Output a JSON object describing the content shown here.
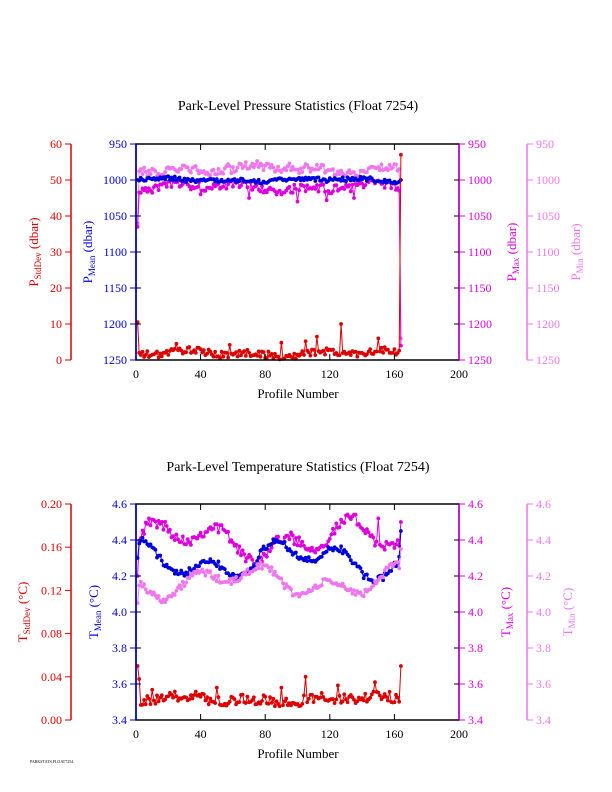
{
  "colors": {
    "stddev": "#dd0000",
    "mean": "#0000dd",
    "max": "#dd00dd",
    "min": "#ee77ee",
    "axis": "#000000"
  },
  "footer_text": "PARKSTATS.FLOAT7254",
  "chart_data": [
    {
      "type": "line",
      "title": "Park-Level Pressure Statistics (Float 7254)",
      "xlabel": "Profile Number",
      "xlim": [
        0,
        200
      ],
      "xticks": [
        "0",
        "40",
        "80",
        "120",
        "160",
        "200"
      ],
      "axes": {
        "stddev": {
          "label_main": "P",
          "label_sub": "StdDev",
          "label_unit": " (dbar)",
          "range": [
            0,
            60
          ],
          "ticks": [
            "0",
            "10",
            "20",
            "30",
            "40",
            "50",
            "60"
          ]
        },
        "mean": {
          "label_main": "P",
          "label_sub": "Mean",
          "label_unit": " (dbar)",
          "range": [
            1250,
            950
          ],
          "ticks": [
            "950",
            "1000",
            "1050",
            "1100",
            "1150",
            "1200",
            "1250"
          ]
        },
        "max": {
          "label_main": "P",
          "label_sub": "Max",
          "label_unit": " (dbar)",
          "range": [
            1250,
            950
          ],
          "ticks": [
            "950",
            "1000",
            "1050",
            "1100",
            "1150",
            "1200",
            "1250"
          ]
        },
        "min": {
          "label_main": "P",
          "label_sub": "Min",
          "label_unit": " (dbar)",
          "range": [
            1250,
            950
          ],
          "ticks": [
            "950",
            "1000",
            "1050",
            "1100",
            "1150",
            "1200",
            "1250"
          ]
        }
      },
      "profile_count": 164,
      "series": [
        {
          "key": "min",
          "base": 985,
          "noise": 6,
          "amp": 3,
          "start": 1060,
          "end": 1220,
          "spikes": [
            [
              30,
              980
            ],
            [
              57,
              978
            ],
            [
              95,
              977
            ]
          ]
        },
        {
          "key": "max",
          "base": 1010,
          "noise": 6,
          "amp": 3,
          "start": 1065,
          "end": 1230,
          "spikes": [
            [
              40,
              1020
            ],
            [
              70,
              1025
            ],
            [
              100,
              1030
            ],
            [
              118,
              1028
            ],
            [
              135,
              1025
            ]
          ]
        },
        {
          "key": "mean",
          "base": 1000,
          "noise": 3,
          "amp": 1.5,
          "start": 1000,
          "end": 1000,
          "spikes": []
        },
        {
          "key": "stddev",
          "base": 1.8,
          "noise": 1.0,
          "amp": 0.5,
          "start": 10.5,
          "end": 57,
          "spikes": [
            [
              1,
              10.5
            ],
            [
              25,
              4.5
            ],
            [
              58,
              4.2
            ],
            [
              90,
              4.8
            ],
            [
              105,
              5.2
            ],
            [
              112,
              6.5
            ],
            [
              127,
              10
            ],
            [
              150,
              6
            ]
          ]
        }
      ]
    },
    {
      "type": "line",
      "title": "Park-Level Temperature Statistics (Float 7254)",
      "xlabel": "Profile Number",
      "xlim": [
        0,
        200
      ],
      "xticks": [
        "0",
        "40",
        "80",
        "120",
        "160",
        "200"
      ],
      "axes": {
        "stddev": {
          "label_main": "T",
          "label_sub": "StdDev",
          "label_unit": " (°C)",
          "range": [
            0,
            0.2
          ],
          "ticks": [
            "0.00",
            "0.04",
            "0.08",
            "0.12",
            "0.16",
            "0.20"
          ]
        },
        "mean": {
          "label_main": "T",
          "label_sub": "Mean",
          "label_unit": " (°C)",
          "range": [
            3.4,
            4.6
          ],
          "ticks": [
            "3.4",
            "3.6",
            "3.8",
            "4.0",
            "4.2",
            "4.4",
            "4.6"
          ]
        },
        "max": {
          "label_main": "T",
          "label_sub": "Max",
          "label_unit": " (°C)",
          "range": [
            3.4,
            4.6
          ],
          "ticks": [
            "3.4",
            "3.6",
            "3.8",
            "4.0",
            "4.2",
            "4.4",
            "4.6"
          ]
        },
        "min": {
          "label_main": "T",
          "label_sub": "Min",
          "label_unit": " (°C)",
          "range": [
            3.4,
            4.6
          ],
          "ticks": [
            "3.4",
            "3.6",
            "3.8",
            "4.0",
            "4.2",
            "4.4",
            "4.6"
          ]
        }
      },
      "profile_count": 164,
      "series": [
        {
          "key": "max",
          "base": 4.4,
          "noise": 0.03,
          "amp": 0.06,
          "start": 4.2,
          "end": 4.5,
          "spikes": [
            [
              8,
              4.52
            ],
            [
              150,
              4.52
            ]
          ]
        },
        {
          "key": "mean",
          "base": 4.29,
          "noise": 0.02,
          "amp": 0.06,
          "start": 4.3,
          "end": 4.45,
          "spikes": []
        },
        {
          "key": "min",
          "base": 4.17,
          "noise": 0.02,
          "amp": 0.05,
          "start": 4.05,
          "end": 4.35,
          "spikes": []
        },
        {
          "key": "stddev",
          "base": 0.019,
          "noise": 0.005,
          "amp": 0.002,
          "start": 0.05,
          "end": 0.05,
          "spikes": [
            [
              1,
              0.05
            ],
            [
              2,
              0.038
            ],
            [
              10,
              0.028
            ],
            [
              50,
              0.03
            ],
            [
              90,
              0.03
            ],
            [
              105,
              0.04
            ],
            [
              125,
              0.032
            ],
            [
              148,
              0.035
            ]
          ]
        }
      ]
    }
  ]
}
